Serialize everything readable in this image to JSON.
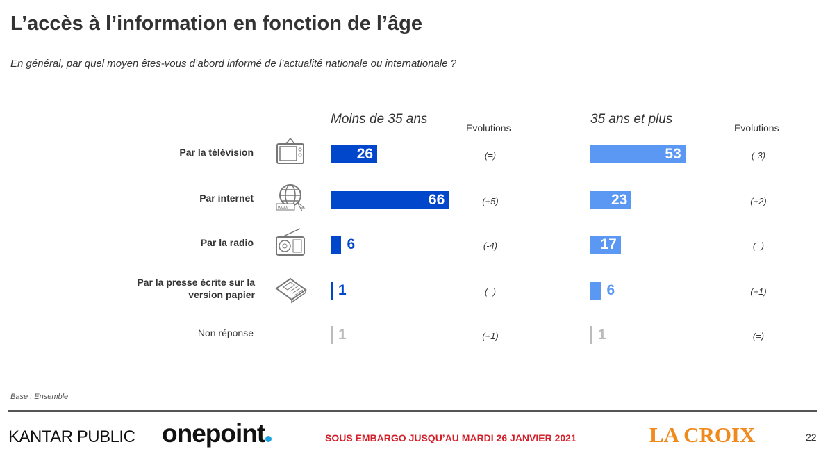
{
  "title": "L’accès à l’information en fonction de l’âge",
  "subtitle": "En général, par quel moyen êtes-vous d’abord informé de l’actualité nationale ou internationale ?",
  "chart_data": {
    "type": "bar",
    "orientation": "horizontal",
    "categories": [
      "Par la télévision",
      "Par internet",
      "Par la radio",
      "Par la presse écrite sur la version papier",
      "Non réponse"
    ],
    "category_icons": [
      "tv-icon",
      "globe-www-icon",
      "radio-icon",
      "newspaper-icon",
      ""
    ],
    "evolutions_label": "Evolutions",
    "series": [
      {
        "name": "Moins de 35 ans",
        "values": [
          26,
          66,
          6,
          1,
          1
        ],
        "evolutions": [
          "(=)",
          "(+5)",
          "(-4)",
          "(=)",
          "(+1)"
        ],
        "color": "#0047CC"
      },
      {
        "name": "35 ans et plus",
        "values": [
          53,
          23,
          17,
          6,
          1
        ],
        "evolutions": [
          "(-3)",
          "(+2)",
          "(=)",
          "(+1)",
          "(=)"
        ],
        "color": "#5B98F3"
      }
    ],
    "nonresponse_color": "#BBBBBB"
  },
  "base": "Base : Ensemble",
  "footer": {
    "kantar": "KANTAR PUBLIC",
    "onepoint": "onepoint",
    "embargo": "SOUS EMBARGO JUSQU’AU MARDI 26 JANVIER 2021",
    "lacroix": "LA CROIX",
    "page": "22"
  }
}
